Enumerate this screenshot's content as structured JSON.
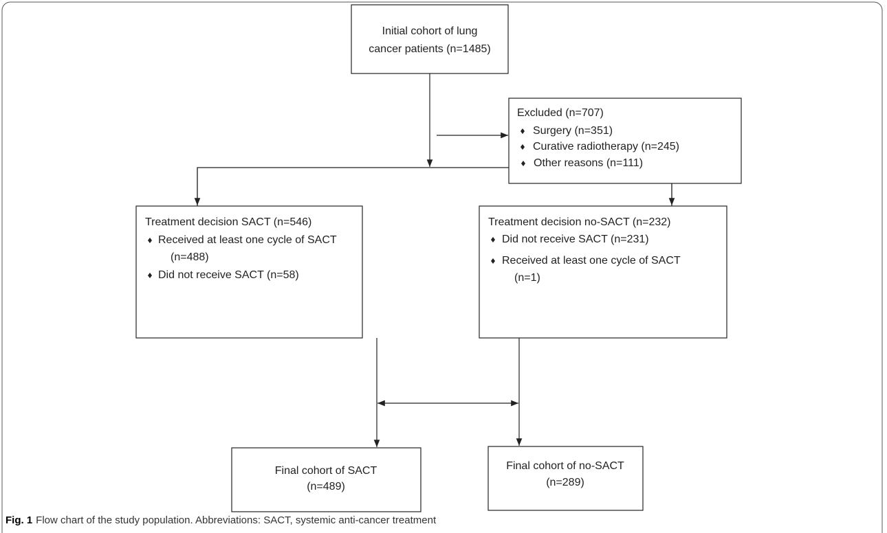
{
  "nodes": [
    {
      "lines": [
        "Initial cohort of lung",
        "cancer patients (n=1485)"
      ]
    },
    {
      "title": "Excluded (n=707)",
      "items": [
        [
          "Surgery (n=351)"
        ],
        [
          "Curative radiotherapy (n=245)"
        ],
        [
          "Other reasons (n=111)"
        ]
      ]
    },
    {
      "title": "Treatment decision SACT (n=546)",
      "items": [
        [
          "Received at least one cycle of SACT",
          "(n=488)"
        ],
        [
          "Did not receive SACT (n=58)"
        ]
      ]
    },
    {
      "title": "Treatment decision no-SACT (n=232)",
      "items": [
        [
          "Did not receive SACT (n=231)"
        ],
        [
          "Received at least one cycle of SACT",
          "(n=1)"
        ]
      ]
    },
    {
      "lines": [
        "Final cohort of SACT",
        "(n=489)"
      ]
    },
    {
      "lines": [
        "Final cohort of no-SACT",
        "(n=289)"
      ]
    }
  ],
  "caption": {
    "label": "Fig. 1",
    "text": "Flow chart of the study population. Abbreviations: SACT, systemic anti-cancer treatment"
  }
}
